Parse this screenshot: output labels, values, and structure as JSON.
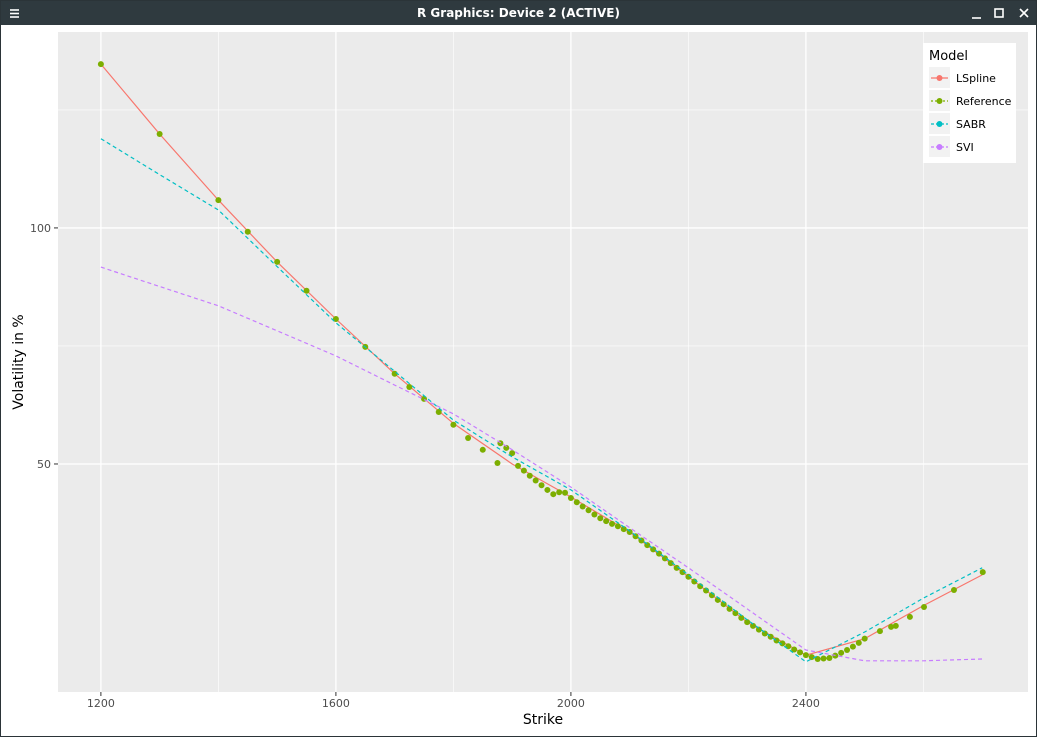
{
  "window": {
    "title": "R Graphics: Device 2 (ACTIVE)"
  },
  "chart_data": {
    "type": "line",
    "x_label": "Strike",
    "y_label": "Volatility in %",
    "xlim": [
      1127,
      2778
    ],
    "ylim": [
      1.7,
      141.5
    ],
    "xticks": [
      1200,
      1600,
      2000,
      2400
    ],
    "yticks": [
      50,
      100
    ],
    "minor_xticks": [
      1400,
      1800,
      2200,
      2600
    ],
    "minor_yticks": [
      75,
      125
    ],
    "grid": true,
    "legend_title": "Model",
    "legend_position": "top-right",
    "series": [
      {
        "name": "LSpline",
        "color": "#F8766D",
        "linestyle": "solid",
        "markers": false,
        "x": [
          1200,
          1300,
          1400,
          1500,
          1600,
          1700,
          1800,
          1900,
          2000,
          2100,
          2200,
          2300,
          2400,
          2500,
          2600,
          2700
        ],
        "values": [
          134.7,
          119.9,
          105.9,
          92.8,
          80.7,
          69.1,
          58.6,
          50.0,
          43.0,
          35.6,
          26.1,
          16.5,
          9.5,
          13.0,
          20.0,
          26.5
        ]
      },
      {
        "name": "Reference",
        "color": "#7CAE00",
        "linestyle": "none",
        "markers": true,
        "x": [
          1200,
          1300,
          1400,
          1450,
          1500,
          1550,
          1600,
          1650,
          1700,
          1725,
          1750,
          1775,
          1800,
          1825,
          1850,
          1875,
          1880,
          1890,
          1900,
          1910,
          1920,
          1930,
          1940,
          1950,
          1960,
          1970,
          1980,
          1990,
          2000,
          2010,
          2020,
          2030,
          2040,
          2050,
          2060,
          2070,
          2080,
          2090,
          2100,
          2110,
          2120,
          2130,
          2140,
          2150,
          2160,
          2170,
          2180,
          2190,
          2200,
          2210,
          2220,
          2230,
          2240,
          2250,
          2260,
          2270,
          2280,
          2290,
          2300,
          2310,
          2320,
          2330,
          2340,
          2350,
          2360,
          2370,
          2380,
          2390,
          2400,
          2410,
          2420,
          2430,
          2440,
          2450,
          2460,
          2470,
          2480,
          2490,
          2500,
          2526,
          2545,
          2553,
          2577,
          2601,
          2652,
          2701
        ],
        "values": [
          134.7,
          119.9,
          105.9,
          99.2,
          92.8,
          86.7,
          80.7,
          74.8,
          69.1,
          66.3,
          63.8,
          61.0,
          58.3,
          55.5,
          53.0,
          50.2,
          54.4,
          53.4,
          52.3,
          49.6,
          48.6,
          47.5,
          46.5,
          45.5,
          44.5,
          43.6,
          44.0,
          43.9,
          42.8,
          41.9,
          41.0,
          40.2,
          39.3,
          38.5,
          37.9,
          37.3,
          36.8,
          36.2,
          35.6,
          34.7,
          33.8,
          32.8,
          31.9,
          31.0,
          30.0,
          29.0,
          28.0,
          27.1,
          26.1,
          25.1,
          24.1,
          23.2,
          22.2,
          21.2,
          20.3,
          19.3,
          18.4,
          17.4,
          16.5,
          15.7,
          14.9,
          14.1,
          13.4,
          12.6,
          12.0,
          11.4,
          10.7,
          10.1,
          9.5,
          9.1,
          8.7,
          8.8,
          8.9,
          9.4,
          10.0,
          10.6,
          11.3,
          12.1,
          13.0,
          14.6,
          15.5,
          15.7,
          17.6,
          19.7,
          23.3,
          27.1
        ]
      },
      {
        "name": "SABR",
        "color": "#00BFC4",
        "linestyle": "dashed",
        "markers": false,
        "x": [
          1200,
          1300,
          1400,
          1500,
          1600,
          1700,
          1800,
          1900,
          2000,
          2100,
          2200,
          2300,
          2400,
          2500,
          2600,
          2700
        ],
        "values": [
          118.9,
          111.3,
          103.8,
          91.8,
          79.9,
          69.6,
          59.3,
          51.5,
          44.5,
          35.8,
          26.5,
          17.0,
          8.1,
          14.4,
          21.6,
          28.0
        ]
      },
      {
        "name": "SVI",
        "color": "#C77CFF",
        "linestyle": "dashed",
        "markers": false,
        "x": [
          1200,
          1300,
          1400,
          1500,
          1600,
          1700,
          1800,
          1900,
          2000,
          2100,
          2200,
          2300,
          2400,
          2500,
          2600,
          2700
        ],
        "values": [
          91.7,
          87.6,
          83.5,
          78.2,
          72.9,
          66.7,
          60.6,
          53.0,
          45.1,
          36.5,
          28.0,
          19.3,
          10.6,
          8.3,
          8.3,
          8.7
        ]
      }
    ]
  }
}
